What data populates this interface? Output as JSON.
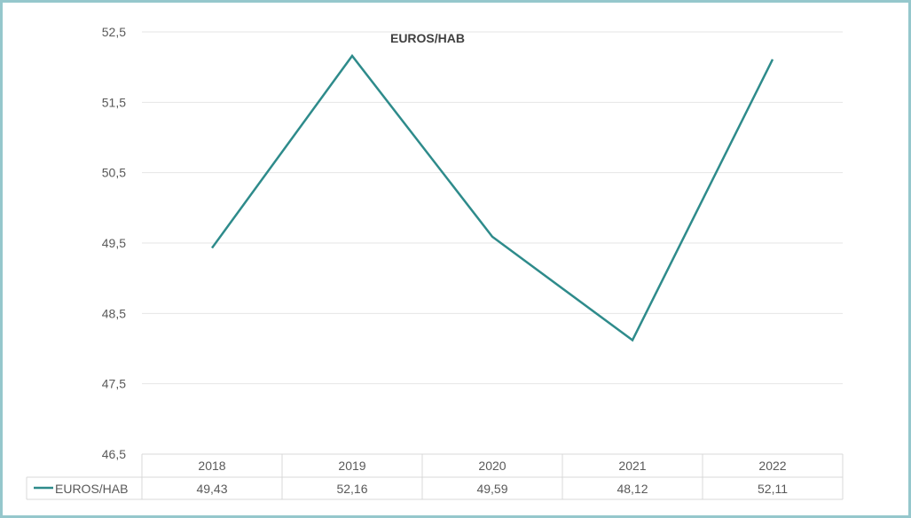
{
  "chart_data": {
    "type": "line",
    "title": "EUROS/HAB",
    "categories": [
      "2018",
      "2019",
      "2020",
      "2021",
      "2022"
    ],
    "series": [
      {
        "name": "EUROS/HAB",
        "values": [
          49.43,
          52.16,
          49.59,
          48.12,
          52.11
        ],
        "value_labels": [
          "49,43",
          "52,16",
          "49,59",
          "48,12",
          "52,11"
        ],
        "color": "#2e8b8b"
      }
    ],
    "ylim": [
      46.5,
      52.5
    ],
    "yticks": [
      52.5,
      51.5,
      50.5,
      49.5,
      48.5,
      47.5,
      46.5
    ],
    "ytick_labels": [
      "52,5",
      "51,5",
      "50,5",
      "49,5",
      "48,5",
      "47,5",
      "46,5"
    ],
    "grid": true,
    "data_table": true,
    "colors": {
      "frame": "#95c7cc",
      "grid": "#e6e6e6",
      "table_border": "#d9d9d9",
      "text": "#595959"
    }
  }
}
